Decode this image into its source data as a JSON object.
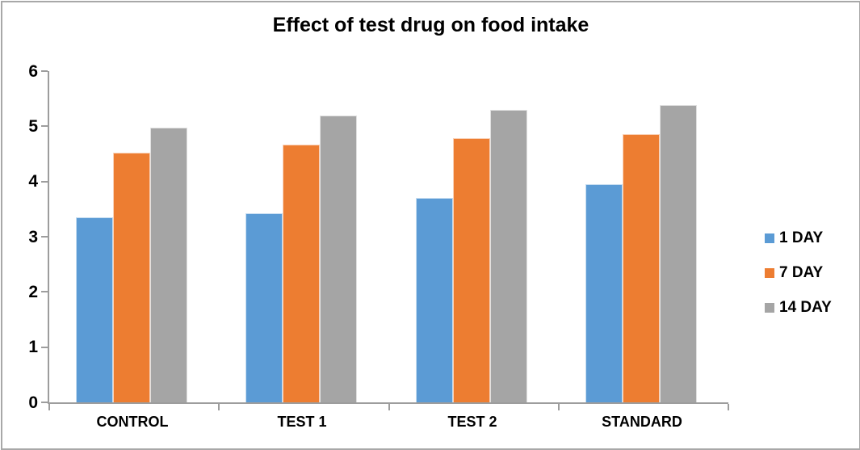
{
  "chart_data": {
    "type": "bar",
    "title": "Effect of test drug on food intake",
    "categories": [
      "CONTROL",
      "TEST 1",
      "TEST 2",
      "STANDARD"
    ],
    "series": [
      {
        "name": "1 DAY",
        "color": "#5B9BD5",
        "values": [
          3.35,
          3.42,
          3.71,
          3.95
        ]
      },
      {
        "name": "7 DAY",
        "color": "#ED7D31",
        "values": [
          4.52,
          4.67,
          4.78,
          4.86
        ]
      },
      {
        "name": "14 DAY",
        "color": "#A5A5A5",
        "values": [
          4.97,
          5.19,
          5.3,
          5.38
        ]
      }
    ],
    "xlabel": "",
    "ylabel": "",
    "ylim": [
      0,
      6
    ],
    "yticks": [
      0,
      1,
      2,
      3,
      4,
      5,
      6
    ],
    "grid": false,
    "legend_position": "right"
  },
  "colors": {
    "axis": "#9d9d9d",
    "canvas_border": "#a8a8a8",
    "text": "#000000"
  }
}
